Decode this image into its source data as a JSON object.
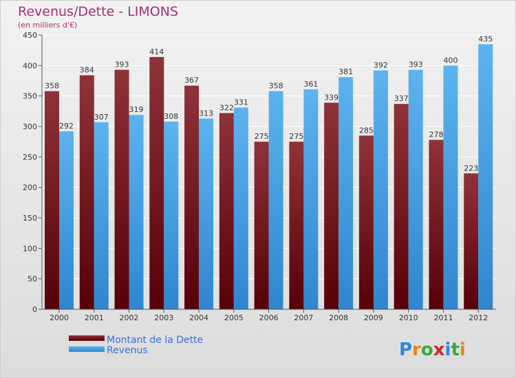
{
  "chart_data": {
    "type": "bar",
    "title": "Revenus/Dette - LIMONS",
    "subtitle": "(en milliers d'€)",
    "categories": [
      "2000",
      "2001",
      "2002",
      "2003",
      "2004",
      "2005",
      "2006",
      "2007",
      "2008",
      "2009",
      "2010",
      "2011",
      "2012"
    ],
    "series": [
      {
        "name": "Montant de la Dette",
        "values": [
          358,
          384,
          393,
          414,
          367,
          322,
          275,
          275,
          339,
          285,
          337,
          278,
          223
        ],
        "color": "#7a1f24"
      },
      {
        "name": "Revenus",
        "values": [
          292,
          307,
          319,
          308,
          313,
          331,
          358,
          361,
          381,
          392,
          393,
          400,
          435
        ],
        "color": "#4aa3e6"
      }
    ],
    "yticks": [
      0,
      50,
      100,
      150,
      200,
      250,
      300,
      350,
      400,
      450
    ],
    "ylim": [
      0,
      450
    ],
    "grid": true,
    "legend": "bottom-left"
  },
  "watermark": {
    "text": "Proxiti"
  }
}
